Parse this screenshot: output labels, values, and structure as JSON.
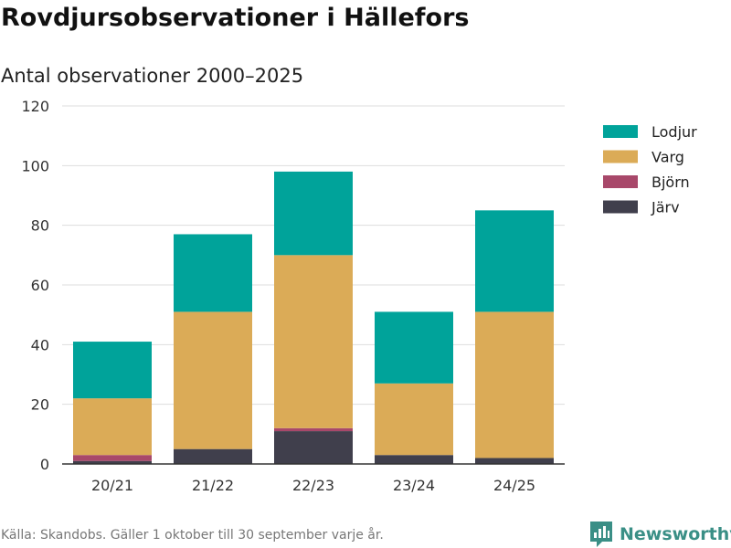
{
  "chart_data": {
    "type": "bar",
    "stacked": true,
    "title": "Rovdjursobservationer i Hällefors",
    "subtitle": "Antal observationer 2000–2025",
    "categories": [
      "20/21",
      "21/22",
      "22/23",
      "23/24",
      "24/25"
    ],
    "series": [
      {
        "name": "Järv",
        "color": "#403f4c",
        "values": [
          1,
          5,
          11,
          3,
          2
        ]
      },
      {
        "name": "Björn",
        "color": "#a8486a",
        "values": [
          2,
          0,
          1,
          0,
          0
        ]
      },
      {
        "name": "Varg",
        "color": "#dbab57",
        "values": [
          19,
          46,
          58,
          24,
          49
        ]
      },
      {
        "name": "Lodjur",
        "color": "#00a39a",
        "values": [
          19,
          26,
          28,
          24,
          34
        ]
      }
    ],
    "legend_order": [
      "Lodjur",
      "Varg",
      "Björn",
      "Järv"
    ],
    "legend_position": "right",
    "ylim": [
      0,
      120
    ],
    "yticks": [
      "0",
      "20",
      "40",
      "60",
      "80",
      "100",
      "120"
    ],
    "grid": true,
    "xlabel": "",
    "ylabel": ""
  },
  "footer": {
    "source": "Källa: Skandobs. Gäller 1 oktober till 30 september varje år.",
    "brand": "Newsworthy",
    "brand_icon": "newsworthy-logo-icon",
    "brand_color": "#3a8f86"
  }
}
